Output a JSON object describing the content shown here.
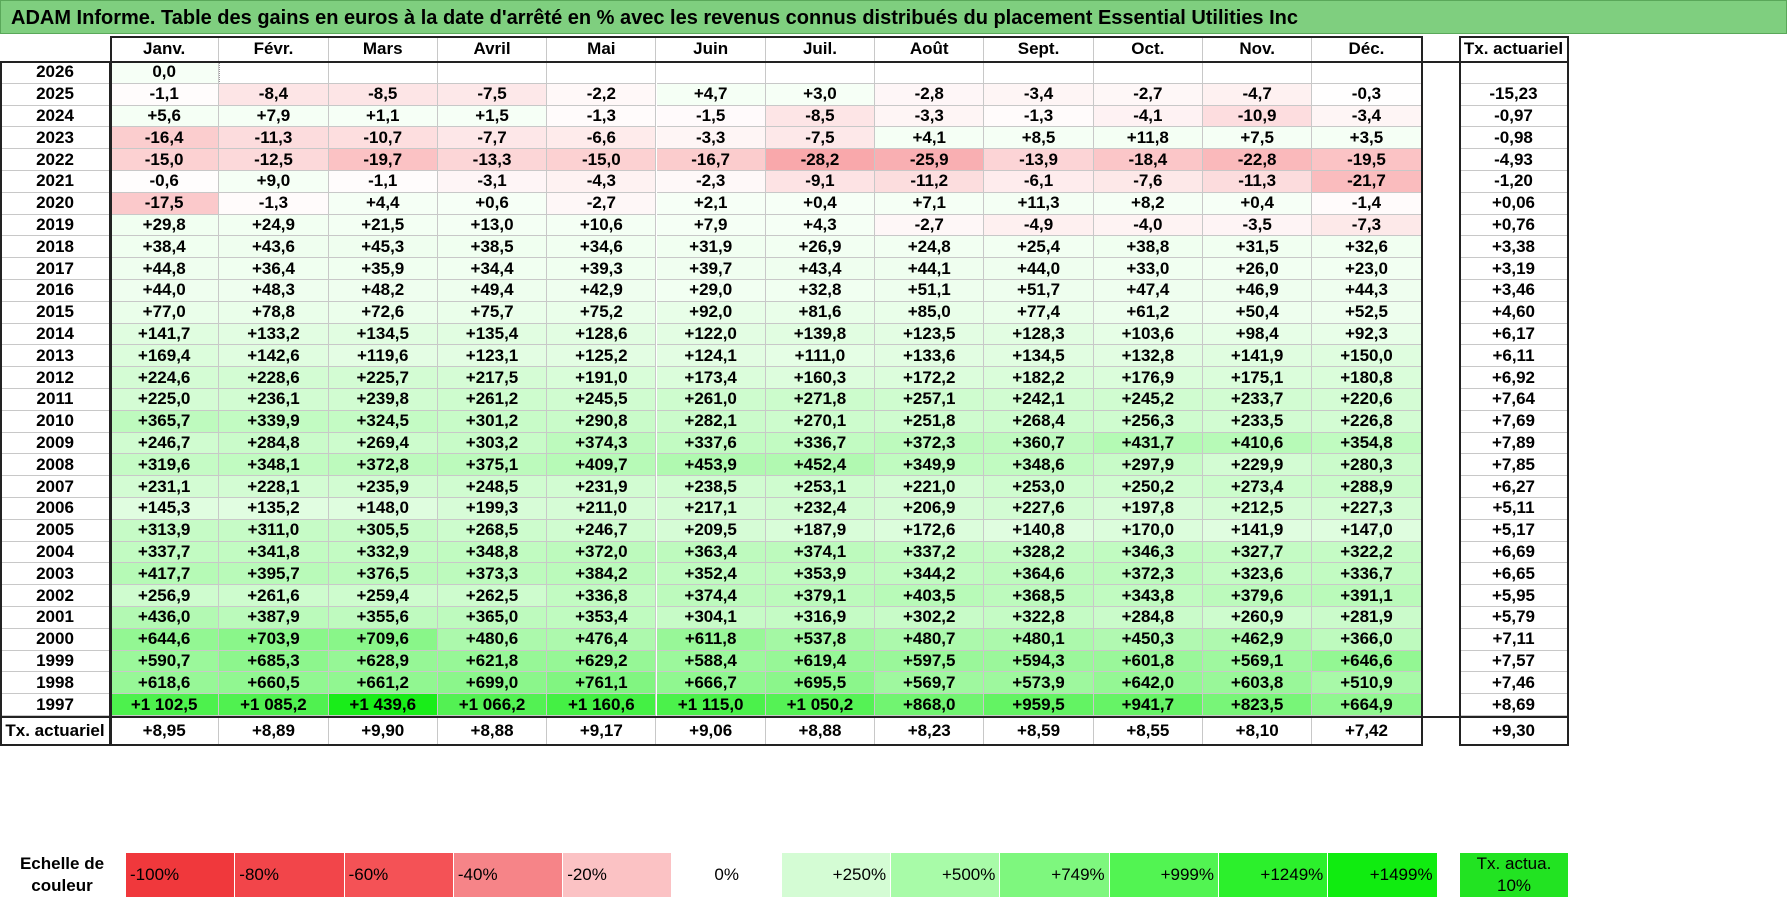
{
  "title": "ADAM Informe. Table des gains en euros à la date d'arrêté en % avec les revenus connus distribués du placement Essential Utilities Inc",
  "months": [
    "Janv.",
    "Févr.",
    "Mars",
    "Avril",
    "Mai",
    "Juin",
    "Juil.",
    "Août",
    "Sept.",
    "Oct.",
    "Nov.",
    "Déc."
  ],
  "actuarial_header": "Tx. actuariel",
  "rows": [
    {
      "year": "2026",
      "values": [
        "0,0",
        "",
        "",
        "",
        "",
        "",
        "",
        "",
        "",
        "",
        "",
        ""
      ],
      "actuarial": ""
    },
    {
      "year": "2025",
      "values": [
        "-1,1",
        "-8,4",
        "-8,5",
        "-7,5",
        "-2,2",
        "+4,7",
        "+3,0",
        "-2,8",
        "-3,4",
        "-2,7",
        "-4,7",
        "-0,3"
      ],
      "actuarial": "-15,23"
    },
    {
      "year": "2024",
      "values": [
        "+5,6",
        "+7,9",
        "+1,1",
        "+1,5",
        "-1,3",
        "-1,5",
        "-8,5",
        "-3,3",
        "-1,3",
        "-4,1",
        "-10,9",
        "-3,4"
      ],
      "actuarial": "-0,97"
    },
    {
      "year": "2023",
      "values": [
        "-16,4",
        "-11,3",
        "-10,7",
        "-7,7",
        "-6,6",
        "-3,3",
        "-7,5",
        "+4,1",
        "+8,5",
        "+11,8",
        "+7,5",
        "+3,5"
      ],
      "actuarial": "-0,98"
    },
    {
      "year": "2022",
      "values": [
        "-15,0",
        "-12,5",
        "-19,7",
        "-13,3",
        "-15,0",
        "-16,7",
        "-28,2",
        "-25,9",
        "-13,9",
        "-18,4",
        "-22,8",
        "-19,5"
      ],
      "actuarial": "-4,93"
    },
    {
      "year": "2021",
      "values": [
        "-0,6",
        "+9,0",
        "-1,1",
        "-3,1",
        "-4,3",
        "-2,3",
        "-9,1",
        "-11,2",
        "-6,1",
        "-7,6",
        "-11,3",
        "-21,7"
      ],
      "actuarial": "-1,20"
    },
    {
      "year": "2020",
      "values": [
        "-17,5",
        "-1,3",
        "+4,4",
        "+0,6",
        "-2,7",
        "+2,1",
        "+0,4",
        "+7,1",
        "+11,3",
        "+8,2",
        "+0,4",
        "-1,4"
      ],
      "actuarial": "+0,06"
    },
    {
      "year": "2019",
      "values": [
        "+29,8",
        "+24,9",
        "+21,5",
        "+13,0",
        "+10,6",
        "+7,9",
        "+4,3",
        "-2,7",
        "-4,9",
        "-4,0",
        "-3,5",
        "-7,3"
      ],
      "actuarial": "+0,76"
    },
    {
      "year": "2018",
      "values": [
        "+38,4",
        "+43,6",
        "+45,3",
        "+38,5",
        "+34,6",
        "+31,9",
        "+26,9",
        "+24,8",
        "+25,4",
        "+38,8",
        "+31,5",
        "+32,6"
      ],
      "actuarial": "+3,38"
    },
    {
      "year": "2017",
      "values": [
        "+44,8",
        "+36,4",
        "+35,9",
        "+34,4",
        "+39,3",
        "+39,7",
        "+43,4",
        "+44,1",
        "+44,0",
        "+33,0",
        "+26,0",
        "+23,0"
      ],
      "actuarial": "+3,19"
    },
    {
      "year": "2016",
      "values": [
        "+44,0",
        "+48,3",
        "+48,2",
        "+49,4",
        "+42,9",
        "+29,0",
        "+32,8",
        "+51,1",
        "+51,7",
        "+47,4",
        "+46,9",
        "+44,3"
      ],
      "actuarial": "+3,46"
    },
    {
      "year": "2015",
      "values": [
        "+77,0",
        "+78,8",
        "+72,6",
        "+75,7",
        "+75,2",
        "+92,0",
        "+81,6",
        "+85,0",
        "+77,4",
        "+61,2",
        "+50,4",
        "+52,5"
      ],
      "actuarial": "+4,60"
    },
    {
      "year": "2014",
      "values": [
        "+141,7",
        "+133,2",
        "+134,5",
        "+135,4",
        "+128,6",
        "+122,0",
        "+139,8",
        "+123,5",
        "+128,3",
        "+103,6",
        "+98,4",
        "+92,3"
      ],
      "actuarial": "+6,17"
    },
    {
      "year": "2013",
      "values": [
        "+169,4",
        "+142,6",
        "+119,6",
        "+123,1",
        "+125,2",
        "+124,1",
        "+111,0",
        "+133,6",
        "+134,5",
        "+132,8",
        "+141,9",
        "+150,0"
      ],
      "actuarial": "+6,11"
    },
    {
      "year": "2012",
      "values": [
        "+224,6",
        "+228,6",
        "+225,7",
        "+217,5",
        "+191,0",
        "+173,4",
        "+160,3",
        "+172,2",
        "+182,2",
        "+176,9",
        "+175,1",
        "+180,8"
      ],
      "actuarial": "+6,92"
    },
    {
      "year": "2011",
      "values": [
        "+225,0",
        "+236,1",
        "+239,8",
        "+261,2",
        "+245,5",
        "+261,0",
        "+271,8",
        "+257,1",
        "+242,1",
        "+245,2",
        "+233,7",
        "+220,6"
      ],
      "actuarial": "+7,64"
    },
    {
      "year": "2010",
      "values": [
        "+365,7",
        "+339,9",
        "+324,5",
        "+301,2",
        "+290,8",
        "+282,1",
        "+270,1",
        "+251,8",
        "+268,4",
        "+256,3",
        "+233,5",
        "+226,8"
      ],
      "actuarial": "+7,69"
    },
    {
      "year": "2009",
      "values": [
        "+246,7",
        "+284,8",
        "+269,4",
        "+303,2",
        "+374,3",
        "+337,6",
        "+336,7",
        "+372,3",
        "+360,7",
        "+431,7",
        "+410,6",
        "+354,8"
      ],
      "actuarial": "+7,89"
    },
    {
      "year": "2008",
      "values": [
        "+319,6",
        "+348,1",
        "+372,8",
        "+375,1",
        "+409,7",
        "+453,9",
        "+452,4",
        "+349,9",
        "+348,6",
        "+297,9",
        "+229,9",
        "+280,3"
      ],
      "actuarial": "+7,85"
    },
    {
      "year": "2007",
      "values": [
        "+231,1",
        "+228,1",
        "+235,9",
        "+248,5",
        "+231,9",
        "+238,5",
        "+253,1",
        "+221,0",
        "+253,0",
        "+250,2",
        "+273,4",
        "+288,9"
      ],
      "actuarial": "+6,27"
    },
    {
      "year": "2006",
      "values": [
        "+145,3",
        "+135,2",
        "+148,0",
        "+199,3",
        "+211,0",
        "+217,1",
        "+232,4",
        "+206,9",
        "+227,6",
        "+197,8",
        "+212,5",
        "+227,3"
      ],
      "actuarial": "+5,11"
    },
    {
      "year": "2005",
      "values": [
        "+313,9",
        "+311,0",
        "+305,5",
        "+268,5",
        "+246,7",
        "+209,5",
        "+187,9",
        "+172,6",
        "+140,8",
        "+170,0",
        "+141,9",
        "+147,0"
      ],
      "actuarial": "+5,17"
    },
    {
      "year": "2004",
      "values": [
        "+337,7",
        "+341,8",
        "+332,9",
        "+348,8",
        "+372,0",
        "+363,4",
        "+374,1",
        "+337,2",
        "+328,2",
        "+346,3",
        "+327,7",
        "+322,2"
      ],
      "actuarial": "+6,69"
    },
    {
      "year": "2003",
      "values": [
        "+417,7",
        "+395,7",
        "+376,5",
        "+373,3",
        "+384,2",
        "+352,4",
        "+353,9",
        "+344,2",
        "+364,6",
        "+372,3",
        "+323,6",
        "+336,7"
      ],
      "actuarial": "+6,65"
    },
    {
      "year": "2002",
      "values": [
        "+256,9",
        "+261,6",
        "+259,4",
        "+262,5",
        "+336,8",
        "+374,4",
        "+379,1",
        "+403,5",
        "+368,5",
        "+343,8",
        "+379,6",
        "+391,1"
      ],
      "actuarial": "+5,95"
    },
    {
      "year": "2001",
      "values": [
        "+436,0",
        "+387,9",
        "+355,6",
        "+365,0",
        "+353,4",
        "+304,1",
        "+316,9",
        "+302,2",
        "+322,8",
        "+284,8",
        "+260,9",
        "+281,9"
      ],
      "actuarial": "+5,79"
    },
    {
      "year": "2000",
      "values": [
        "+644,6",
        "+703,9",
        "+709,6",
        "+480,6",
        "+476,4",
        "+611,8",
        "+537,8",
        "+480,7",
        "+480,1",
        "+450,3",
        "+462,9",
        "+366,0"
      ],
      "actuarial": "+7,11"
    },
    {
      "year": "1999",
      "values": [
        "+590,7",
        "+685,3",
        "+628,9",
        "+621,8",
        "+629,2",
        "+588,4",
        "+619,4",
        "+597,5",
        "+594,3",
        "+601,8",
        "+569,1",
        "+646,6"
      ],
      "actuarial": "+7,57"
    },
    {
      "year": "1998",
      "values": [
        "+618,6",
        "+660,5",
        "+661,2",
        "+699,0",
        "+761,1",
        "+666,7",
        "+695,5",
        "+569,7",
        "+573,9",
        "+642,0",
        "+603,8",
        "+510,9"
      ],
      "actuarial": "+7,46"
    },
    {
      "year": "1997",
      "values": [
        "+1 102,5",
        "+1 085,2",
        "+1 439,6",
        "+1 066,2",
        "+1 160,6",
        "+1 115,0",
        "+1 050,2",
        "+868,0",
        "+959,5",
        "+941,7",
        "+823,5",
        "+664,9"
      ],
      "actuarial": "+8,69"
    }
  ],
  "footer": {
    "label": "Tx. actuariel",
    "values": [
      "+8,95",
      "+8,89",
      "+9,90",
      "+8,88",
      "+9,17",
      "+9,06",
      "+8,88",
      "+8,23",
      "+8,59",
      "+8,55",
      "+8,10",
      "+7,42"
    ],
    "actuarial": "+9,30"
  },
  "legend": {
    "label": "Echelle de couleur",
    "items": [
      {
        "text": "-100%",
        "color": "#f0383c",
        "align": "left"
      },
      {
        "text": "-80%",
        "color": "#f2454a",
        "align": "left"
      },
      {
        "text": "-60%",
        "color": "#f45256",
        "align": "left"
      },
      {
        "text": "-40%",
        "color": "#f68488",
        "align": "left"
      },
      {
        "text": "-20%",
        "color": "#fbc2c4",
        "align": "left"
      },
      {
        "text": "0%",
        "color": "#ffffff",
        "align": "center"
      },
      {
        "text": "+250%",
        "color": "#d4fcd4",
        "align": "right"
      },
      {
        "text": "+500%",
        "color": "#a8fba8",
        "align": "right"
      },
      {
        "text": "+749%",
        "color": "#7ef77e",
        "align": "right"
      },
      {
        "text": "+999%",
        "color": "#52f452",
        "align": "right"
      },
      {
        "text": "+1249%",
        "color": "#2cf02c",
        "align": "right"
      },
      {
        "text": "+1499%",
        "color": "#10ec10",
        "align": "right"
      }
    ],
    "actua_label": "Tx. actua. 10%",
    "actua_color": "#22e322"
  },
  "colors": {
    "title_bg": "#7fcf7f"
  }
}
